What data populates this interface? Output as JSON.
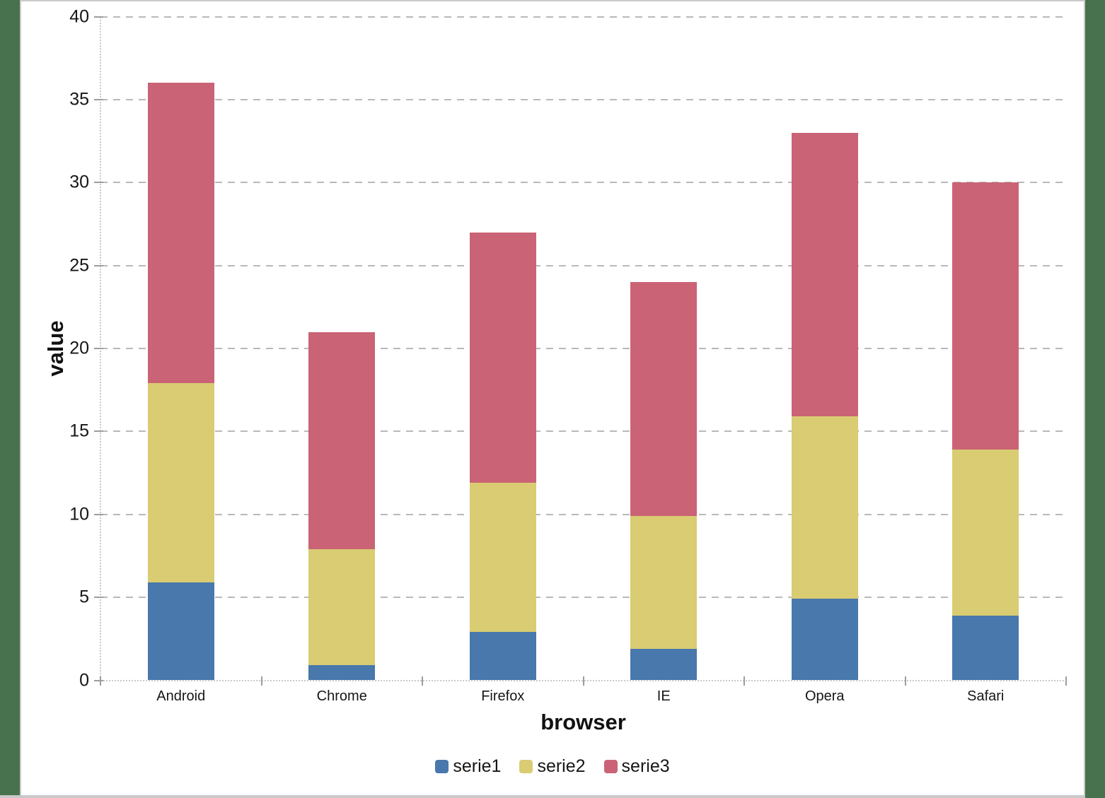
{
  "frame": {
    "side_border_color": "#48714e",
    "panel_edge_color": "#c9c9c9",
    "background_color": "#ffffff"
  },
  "chart_data": {
    "type": "bar",
    "stacked": true,
    "title": "",
    "xlabel": "browser",
    "ylabel": "value",
    "categories": [
      "Android",
      "Chrome",
      "Firefox",
      "IE",
      "Opera",
      "Safari"
    ],
    "series": [
      {
        "name": "serie1",
        "color": "#4878ac",
        "values": [
          5.9,
          0.9,
          2.9,
          1.9,
          4.9,
          3.9
        ]
      },
      {
        "name": "serie2",
        "color": "#d9cc72",
        "values": [
          12,
          7,
          9,
          8,
          11,
          10
        ]
      },
      {
        "name": "serie3",
        "color": "#ca6375",
        "values": [
          18.1,
          13.1,
          15.1,
          14.1,
          17.1,
          16.1
        ]
      }
    ],
    "stack_totals": [
      36,
      21,
      27,
      24,
      33,
      30
    ],
    "ylim": [
      0,
      40
    ],
    "ytick_step": 5,
    "ytick_labels": [
      "0",
      "5",
      "10",
      "15",
      "20",
      "25",
      "30",
      "35",
      "40"
    ],
    "grid": "horizontal-dashed",
    "legend_position": "bottom"
  }
}
